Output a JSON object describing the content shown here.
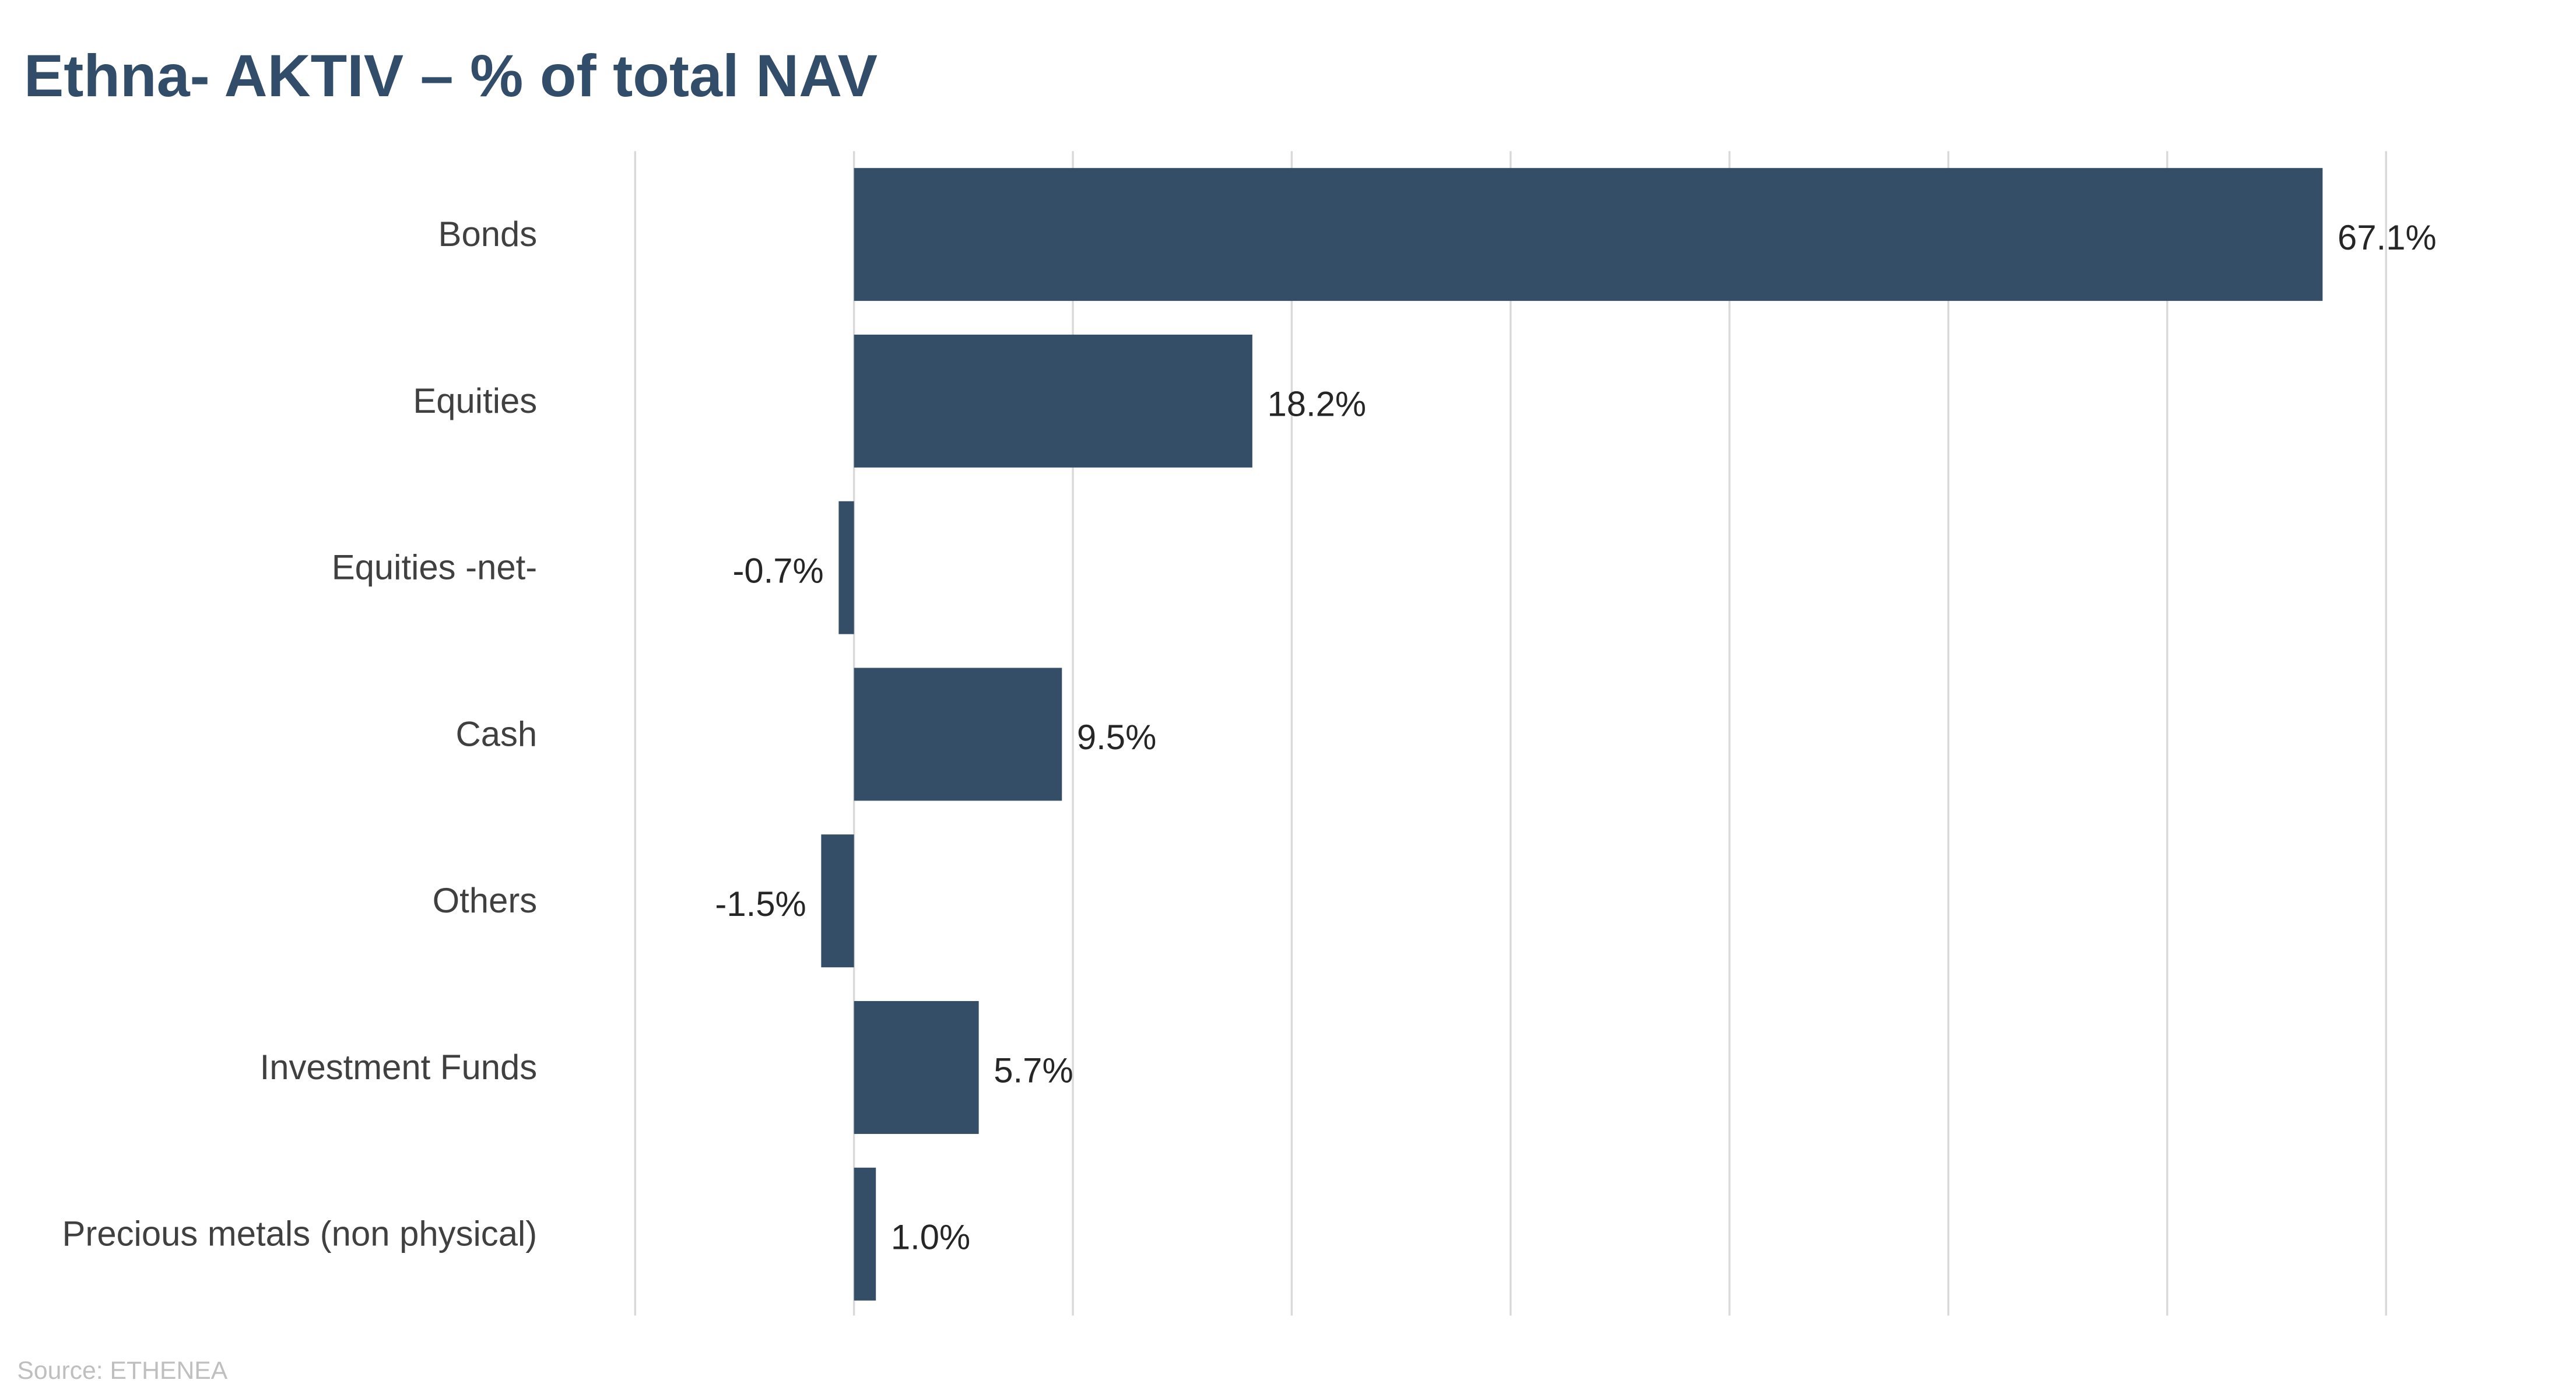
{
  "chart_data": {
    "type": "bar",
    "orientation": "horizontal",
    "title": "Ethna- AKTIV – % of total NAV",
    "categories": [
      "Bonds",
      "Equities",
      "Equities -net-",
      "Cash",
      "Others",
      "Investment Funds",
      "Precious metals (non physical)"
    ],
    "values": [
      67.1,
      18.2,
      -0.7,
      9.5,
      -1.5,
      5.7,
      1.0
    ],
    "data_labels": [
      "67.1%",
      "18.2%",
      "-0.7%",
      "9.5%",
      "-1.5%",
      "5.7%",
      "1.0%"
    ],
    "xlim": [
      -10,
      70
    ],
    "grid_step": 10,
    "grid": true,
    "xlabel": "",
    "ylabel": "",
    "source": "Source: ETHENEA",
    "bar_color": "#344e68"
  }
}
